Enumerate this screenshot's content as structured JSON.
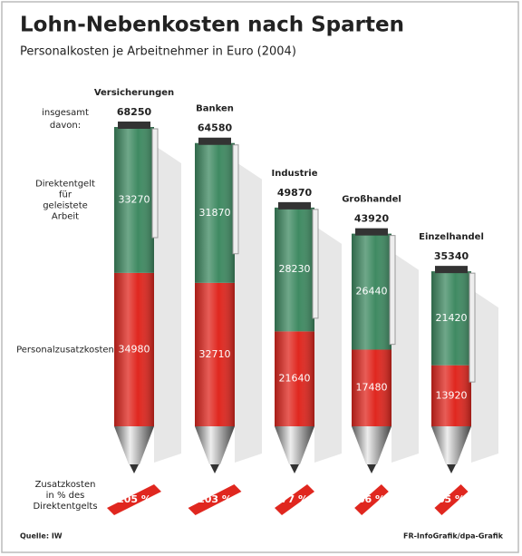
{
  "chart_data": {
    "type": "pen_stacked_bar",
    "title": "Lohn-Nebenkosten nach Sparten",
    "subtitle": "Personalkosten je Arbeitnehmer in Euro (2004)",
    "categories": [
      "Versicherungen",
      "Banken",
      "Industrie",
      "Großhandel",
      "Einzelhandel"
    ],
    "totals_label": "insgesamt",
    "breakdown_label": "davon:",
    "totals": [
      68250,
      64580,
      49870,
      43920,
      35340
    ],
    "series": [
      {
        "name": "Direktentgelt für geleistete Arbeit",
        "color": "#3f8a62",
        "values": [
          33270,
          31870,
          28230,
          26440,
          21420
        ]
      },
      {
        "name": "Personalzusatzkosten",
        "color": "#e0271f",
        "values": [
          34980,
          32710,
          21640,
          17480,
          13920
        ]
      }
    ],
    "percentages": {
      "label": "Zusatzkosten in % des Direktentgelts",
      "color": "#e0271f",
      "values": [
        105,
        103,
        77,
        66,
        65
      ],
      "value_labels": [
        "105 %",
        "103 %",
        "77 %",
        "66 %",
        "65 %"
      ]
    },
    "source": "Quelle: IW",
    "credit": "FR-InfoGrafik/dpa-Grafik"
  }
}
